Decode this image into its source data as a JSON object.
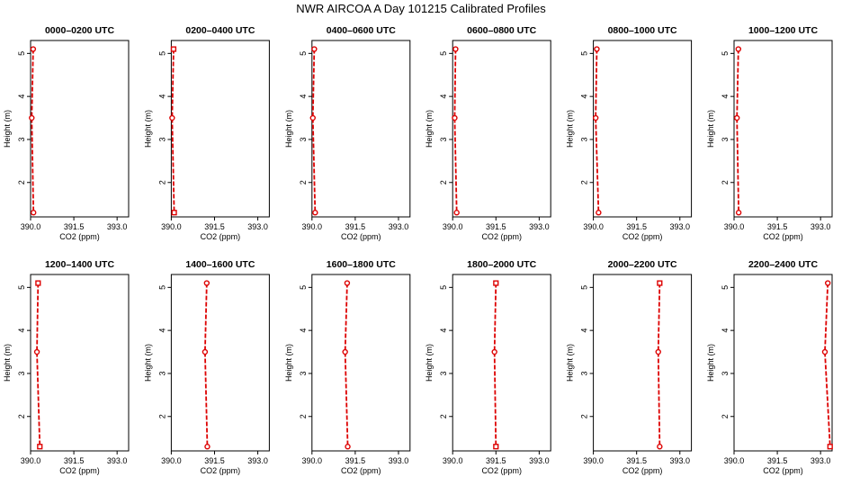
{
  "title": "NWR AIRCOA A  Day 101215  Calibrated Profiles",
  "chart_data": {
    "type": "line",
    "xlabel": "CO2 (ppm)",
    "ylabel": "Height (m)",
    "xlim": [
      390.0,
      393.4
    ],
    "ylim": [
      1.2,
      5.3
    ],
    "x_ticks": [
      "390.0",
      "391.5",
      "393.0"
    ],
    "x_tick_values": [
      390.0,
      391.5,
      393.0
    ],
    "y_ticks": [
      "2",
      "3",
      "4",
      "5"
    ],
    "y_tick_values": [
      2,
      3,
      4,
      5
    ],
    "line_color": "#dd0000",
    "line_style": "dashed",
    "panels": [
      {
        "title": "0000–0200 UTC",
        "points": [
          {
            "x": 390.09,
            "y": 5.1,
            "marker": "circle"
          },
          {
            "x": 390.04,
            "y": 3.5,
            "marker": "circle"
          },
          {
            "x": 390.1,
            "y": 1.3,
            "marker": "circle"
          }
        ]
      },
      {
        "title": "0200–0400 UTC",
        "points": [
          {
            "x": 390.08,
            "y": 5.1,
            "marker": "square"
          },
          {
            "x": 390.03,
            "y": 3.5,
            "marker": "circle"
          },
          {
            "x": 390.1,
            "y": 1.3,
            "marker": "square"
          }
        ]
      },
      {
        "title": "0400–0600 UTC",
        "points": [
          {
            "x": 390.08,
            "y": 5.1,
            "marker": "circle"
          },
          {
            "x": 390.03,
            "y": 3.5,
            "marker": "circle"
          },
          {
            "x": 390.11,
            "y": 1.3,
            "marker": "circle"
          }
        ]
      },
      {
        "title": "0600–0800 UTC",
        "points": [
          {
            "x": 390.1,
            "y": 5.1,
            "marker": "circle"
          },
          {
            "x": 390.07,
            "y": 3.5,
            "marker": "circle"
          },
          {
            "x": 390.14,
            "y": 1.3,
            "marker": "circle"
          }
        ]
      },
      {
        "title": "0800–1000 UTC",
        "points": [
          {
            "x": 390.12,
            "y": 5.1,
            "marker": "circle"
          },
          {
            "x": 390.08,
            "y": 3.5,
            "marker": "circle"
          },
          {
            "x": 390.18,
            "y": 1.3,
            "marker": "circle"
          }
        ]
      },
      {
        "title": "1000–1200 UTC",
        "points": [
          {
            "x": 390.15,
            "y": 5.1,
            "marker": "circle"
          },
          {
            "x": 390.1,
            "y": 3.5,
            "marker": "circle"
          },
          {
            "x": 390.16,
            "y": 1.3,
            "marker": "circle"
          }
        ]
      },
      {
        "title": "1200–1400 UTC",
        "points": [
          {
            "x": 390.26,
            "y": 5.1,
            "marker": "square"
          },
          {
            "x": 390.22,
            "y": 3.5,
            "marker": "circle"
          },
          {
            "x": 390.32,
            "y": 1.3,
            "marker": "square"
          }
        ]
      },
      {
        "title": "1400–1600 UTC",
        "points": [
          {
            "x": 391.23,
            "y": 5.1,
            "marker": "circle"
          },
          {
            "x": 391.17,
            "y": 3.5,
            "marker": "circle"
          },
          {
            "x": 391.25,
            "y": 1.3,
            "marker": "circle"
          }
        ]
      },
      {
        "title": "1600–1800 UTC",
        "points": [
          {
            "x": 391.22,
            "y": 5.1,
            "marker": "circle"
          },
          {
            "x": 391.15,
            "y": 3.5,
            "marker": "circle"
          },
          {
            "x": 391.24,
            "y": 1.3,
            "marker": "circle"
          }
        ]
      },
      {
        "title": "1800–2000 UTC",
        "points": [
          {
            "x": 391.5,
            "y": 5.1,
            "marker": "square"
          },
          {
            "x": 391.45,
            "y": 3.5,
            "marker": "circle"
          },
          {
            "x": 391.5,
            "y": 1.3,
            "marker": "square"
          }
        ]
      },
      {
        "title": "2000–2200 UTC",
        "points": [
          {
            "x": 392.3,
            "y": 5.1,
            "marker": "square"
          },
          {
            "x": 392.25,
            "y": 3.5,
            "marker": "circle"
          },
          {
            "x": 392.3,
            "y": 1.3,
            "marker": "circle"
          }
        ]
      },
      {
        "title": "2200–2400 UTC",
        "points": [
          {
            "x": 393.25,
            "y": 5.1,
            "marker": "circle"
          },
          {
            "x": 393.15,
            "y": 3.5,
            "marker": "circle"
          },
          {
            "x": 393.33,
            "y": 1.3,
            "marker": "square"
          }
        ]
      }
    ]
  }
}
